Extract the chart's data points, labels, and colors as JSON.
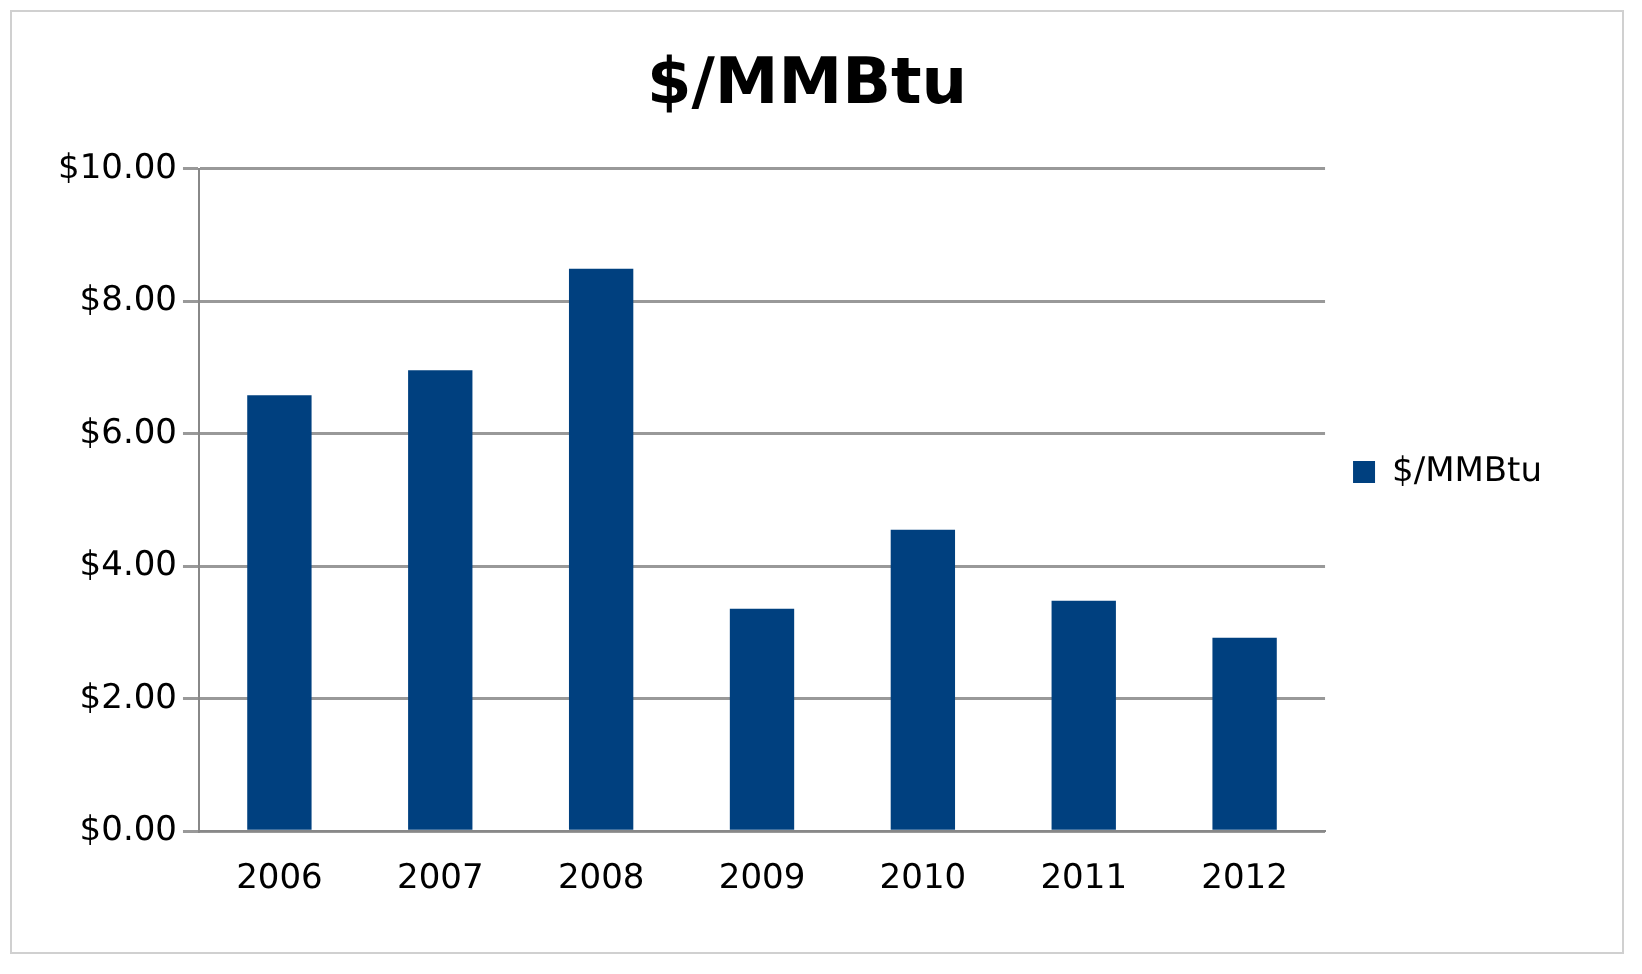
{
  "chart_data": {
    "type": "bar",
    "title": "$/MMBtu",
    "categories": [
      "2006",
      "2007",
      "2008",
      "2009",
      "2010",
      "2011",
      "2012"
    ],
    "series": [
      {
        "name": "$/MMBtu",
        "color": "#00407f",
        "values": [
          6.58,
          6.96,
          8.49,
          3.36,
          4.55,
          3.48,
          2.92
        ]
      }
    ],
    "ylim": [
      0,
      10
    ],
    "yticks": [
      {
        "value": 0,
        "label": "$0.00"
      },
      {
        "value": 2,
        "label": "$2.00"
      },
      {
        "value": 4,
        "label": "$4.00"
      },
      {
        "value": 6,
        "label": "$6.00"
      },
      {
        "value": 8,
        "label": "$8.00"
      },
      {
        "value": 10,
        "label": "$10.00"
      }
    ],
    "grid": "y",
    "legend": "right"
  }
}
